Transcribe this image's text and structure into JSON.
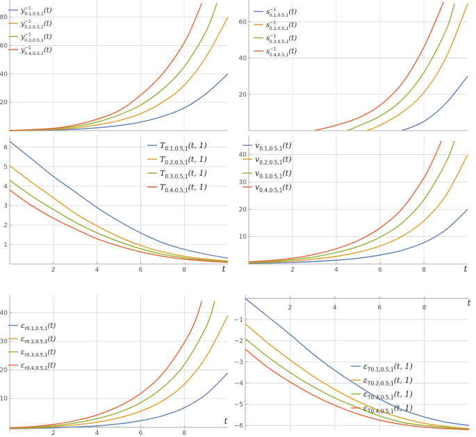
{
  "colors": [
    "#5e81b5",
    "#e19c24",
    "#8fb032",
    "#eb6235"
  ],
  "chart_data": [
    {
      "id": "p1",
      "type": "line",
      "xlim": [
        0,
        10
      ],
      "ylim": [
        0,
        92
      ],
      "xticks": [],
      "yticks": [
        20,
        40,
        60,
        80
      ],
      "xlabel": "",
      "legend_position": "top-left",
      "legend_font": 10,
      "legend": [
        {
          "sym": "y",
          "sup": "−1",
          "sub": "0.1,0.5,1",
          "arg": "(t)"
        },
        {
          "sym": "y",
          "sup": "−1",
          "sub": "0.2,0.5,1",
          "arg": "(t)"
        },
        {
          "sym": "y",
          "sup": "−1",
          "sub": "0.3,0.5,1",
          "arg": "(t)"
        },
        {
          "sym": "y",
          "sup": "−1",
          "sub": "0.4,0.5,1",
          "arg": "(t)"
        }
      ],
      "series": [
        {
          "x": [
            0,
            2,
            3,
            4,
            5,
            6,
            7,
            8,
            9,
            10
          ],
          "y": [
            0,
            0.4,
            1,
            2,
            3.5,
            6,
            10,
            16,
            26,
            40
          ]
        },
        {
          "x": [
            0,
            2,
            3,
            4,
            5,
            6,
            7,
            8,
            9,
            10
          ],
          "y": [
            0,
            0.8,
            2,
            4,
            7,
            12,
            20,
            32,
            52,
            80
          ]
        },
        {
          "x": [
            0,
            2,
            3,
            4,
            5,
            6,
            7,
            8,
            9,
            9.5
          ],
          "y": [
            0,
            1.2,
            3,
            6,
            11,
            18,
            29,
            45,
            70,
            90
          ]
        },
        {
          "x": [
            0,
            2,
            3,
            4,
            5,
            6,
            7,
            8,
            8.6,
            8.8
          ],
          "y": [
            0,
            1.6,
            4,
            8,
            14,
            25,
            40,
            62,
            82,
            90
          ]
        }
      ]
    },
    {
      "id": "p2",
      "type": "line",
      "xlim": [
        0,
        10
      ],
      "ylim": [
        0,
        72
      ],
      "xticks": [],
      "yticks": [
        20,
        40,
        60
      ],
      "xlabel": "",
      "legend_position": "top-left",
      "legend_font": 10,
      "legend": [
        {
          "sym": "s",
          "sup": "−1",
          "sub": "0.1,0.5,1",
          "arg": "(t)"
        },
        {
          "sym": "s",
          "sup": "−1",
          "sub": "0.2,0.5,1",
          "arg": "(t)"
        },
        {
          "sym": "s",
          "sup": "−1",
          "sub": "0.3,0.5,1",
          "arg": "(t)"
        },
        {
          "sym": "s",
          "sup": "−1",
          "sub": "0.4,0.5,1",
          "arg": "(t)"
        }
      ],
      "series": [
        {
          "x": [
            7,
            8,
            9,
            10
          ],
          "y": [
            0,
            5,
            15,
            30
          ]
        },
        {
          "x": [
            5.4,
            6,
            7,
            8,
            9,
            10
          ],
          "y": [
            0,
            3,
            10,
            21,
            40,
            70
          ]
        },
        {
          "x": [
            4.5,
            5,
            6,
            7,
            8,
            9,
            9.4
          ],
          "y": [
            0,
            2.5,
            8,
            17,
            32,
            55,
            70
          ]
        },
        {
          "x": [
            3,
            4,
            5,
            6,
            7,
            8,
            8.9
          ],
          "y": [
            0,
            3,
            7,
            14,
            26,
            46,
            71
          ]
        }
      ]
    },
    {
      "id": "p3",
      "type": "line",
      "xlim": [
        0,
        10
      ],
      "ylim": [
        0,
        6.6
      ],
      "xticks": [
        2,
        4,
        6,
        8
      ],
      "yticks": [
        1,
        2,
        3,
        4,
        5,
        6
      ],
      "xlabel": "t",
      "legend_position": "top-right",
      "legend_font": 11,
      "legend": [
        {
          "sym": "T",
          "sup": "",
          "sub": "0.1,0.5,1",
          "arg": "(t, 1)"
        },
        {
          "sym": "T",
          "sup": "",
          "sub": "0.2,0.5,1",
          "arg": "(t, 1)"
        },
        {
          "sym": "T",
          "sup": "",
          "sub": "0.3,0.5,1",
          "arg": "(t, 1)"
        },
        {
          "sym": "T",
          "sup": "",
          "sub": "0.4,0.5,1",
          "arg": "(t, 1)"
        }
      ],
      "series": [
        {
          "x": [
            0,
            1,
            2,
            3,
            4,
            5,
            6,
            7,
            8,
            9,
            10
          ],
          "y": [
            6.3,
            5.4,
            4.5,
            3.7,
            2.9,
            2.2,
            1.6,
            1.1,
            0.75,
            0.5,
            0.3
          ]
        },
        {
          "x": [
            0,
            1,
            2,
            3,
            4,
            5,
            6,
            7,
            8,
            9,
            10
          ],
          "y": [
            5.05,
            4.2,
            3.4,
            2.6,
            1.95,
            1.4,
            0.95,
            0.62,
            0.4,
            0.25,
            0.15
          ]
        },
        {
          "x": [
            0,
            1,
            2,
            3,
            4,
            5,
            6,
            7,
            8,
            9,
            10
          ],
          "y": [
            4.3,
            3.5,
            2.8,
            2.15,
            1.6,
            1.15,
            0.78,
            0.5,
            0.32,
            0.2,
            0.12
          ]
        },
        {
          "x": [
            0,
            1,
            2,
            3,
            4,
            5,
            6,
            7,
            8,
            9,
            10
          ],
          "y": [
            3.8,
            3.0,
            2.35,
            1.8,
            1.3,
            0.92,
            0.62,
            0.4,
            0.25,
            0.15,
            0.09
          ]
        }
      ]
    },
    {
      "id": "p4",
      "type": "line",
      "xlim": [
        0,
        10
      ],
      "ylim": [
        0,
        47
      ],
      "xticks": [
        2,
        4,
        6,
        8
      ],
      "yticks": [
        10,
        20,
        30,
        40
      ],
      "xlabel": "t",
      "legend_position": "top-left",
      "legend_font": 11,
      "legend": [
        {
          "sym": "v",
          "sup": "",
          "sub": "0.1,0.5,1",
          "arg": "(t)"
        },
        {
          "sym": "v",
          "sup": "",
          "sub": "0.2,0.5,1",
          "arg": "(t)"
        },
        {
          "sym": "v",
          "sup": "",
          "sub": "0.3,0.5,1",
          "arg": "(t)"
        },
        {
          "sym": "v",
          "sup": "",
          "sub": "0.4,0.5,1",
          "arg": "(t)"
        }
      ],
      "series": [
        {
          "x": [
            0,
            1,
            2,
            3,
            4,
            5,
            6,
            7,
            8,
            9,
            10
          ],
          "y": [
            0.2,
            0.35,
            0.6,
            0.9,
            1.4,
            2.1,
            3.3,
            5.0,
            7.8,
            12.5,
            20
          ]
        },
        {
          "x": [
            0,
            1,
            2,
            3,
            4,
            5,
            6,
            7,
            8,
            9,
            10
          ],
          "y": [
            0.4,
            0.7,
            1.1,
            1.8,
            2.8,
            4.3,
            6.6,
            10.1,
            15.8,
            25,
            40
          ]
        },
        {
          "x": [
            0,
            1,
            2,
            3,
            4,
            5,
            6,
            7,
            8,
            9,
            9.4
          ],
          "y": [
            0.6,
            1.0,
            1.6,
            2.6,
            4.2,
            6.4,
            9.8,
            15,
            23.5,
            37,
            45
          ]
        },
        {
          "x": [
            0,
            1,
            2,
            3,
            4,
            5,
            6,
            7,
            8,
            8.5,
            8.8
          ],
          "y": [
            0.8,
            1.3,
            2.1,
            3.5,
            5.6,
            8.6,
            13.2,
            20.2,
            31.5,
            39.5,
            45
          ]
        }
      ]
    },
    {
      "id": "p5",
      "type": "line",
      "xlim": [
        0,
        10
      ],
      "ylim": [
        -1.2,
        46
      ],
      "xticks": [
        2,
        4,
        6,
        8
      ],
      "yticks": [
        10,
        20,
        30,
        40
      ],
      "xlabel": "t",
      "legend_position": "left",
      "legend_font": 10,
      "legend": [
        {
          "sym": "ε",
          "sup": "",
          "sub": "r0.1,0.5,1",
          "arg": "(t)"
        },
        {
          "sym": "ε",
          "sup": "",
          "sub": "r0.2,0.5,1",
          "arg": "(t)"
        },
        {
          "sym": "ε",
          "sup": "",
          "sub": "r0.3,0.5,1",
          "arg": "(t)"
        },
        {
          "sym": "ε",
          "sup": "",
          "sub": "r0.4,0.5,1",
          "arg": "(t)"
        }
      ],
      "series": [
        {
          "x": [
            0,
            1,
            2,
            3,
            4,
            5,
            6,
            7,
            8,
            9,
            10
          ],
          "y": [
            -0.5,
            -0.4,
            -0.2,
            0.1,
            0.5,
            1.2,
            2.3,
            4.0,
            6.8,
            11.5,
            19
          ]
        },
        {
          "x": [
            0,
            1,
            2,
            3,
            4,
            5,
            6,
            7,
            8,
            9,
            10
          ],
          "y": [
            -0.4,
            -0.2,
            0.2,
            0.8,
            1.8,
            3.3,
            5.6,
            9.2,
            15,
            24.5,
            39
          ]
        },
        {
          "x": [
            0,
            1,
            2,
            3,
            4,
            5,
            6,
            7,
            8,
            9,
            9.4
          ],
          "y": [
            -0.3,
            0,
            0.5,
            1.5,
            3.0,
            5.2,
            8.6,
            13.8,
            21.8,
            35,
            44
          ]
        },
        {
          "x": [
            0,
            1,
            2,
            3,
            4,
            5,
            6,
            7,
            8,
            8.5,
            8.8
          ],
          "y": [
            -0.2,
            0.2,
            1.0,
            2.3,
            4.3,
            7.3,
            11.8,
            18.6,
            29.5,
            37,
            44
          ]
        }
      ]
    },
    {
      "id": "p6",
      "type": "line",
      "xlim": [
        0,
        10
      ],
      "ylim": [
        -6.25,
        0.15
      ],
      "xticks": [
        2,
        4,
        6,
        8
      ],
      "yticks": [
        -1,
        -2,
        -3,
        -4,
        -5,
        -6
      ],
      "xlabel": "t",
      "legend_position": "right",
      "legend_font": 11,
      "legend": [
        {
          "sym": "ε",
          "sup": "",
          "sub": "T0.1,0.5,1",
          "arg": "(t, 1)"
        },
        {
          "sym": "ε",
          "sup": "",
          "sub": "T0.2,0.5,1",
          "arg": "(t, 1)"
        },
        {
          "sym": "ε",
          "sup": "",
          "sub": "T0.3,0.5,1",
          "arg": "(t, 1)"
        },
        {
          "sym": "ε",
          "sup": "",
          "sub": "T0.4,0.5,1",
          "arg": "(t, 1)"
        }
      ],
      "series": [
        {
          "x": [
            0,
            1,
            2,
            3,
            4,
            5,
            6,
            7,
            8,
            9,
            10
          ],
          "y": [
            0,
            -0.85,
            -1.7,
            -2.6,
            -3.4,
            -4.1,
            -4.75,
            -5.25,
            -5.6,
            -5.85,
            -6.0
          ]
        },
        {
          "x": [
            0,
            1,
            2,
            3,
            4,
            5,
            6,
            7,
            8,
            9,
            10
          ],
          "y": [
            -1.2,
            -2.1,
            -2.9,
            -3.65,
            -4.3,
            -4.85,
            -5.3,
            -5.65,
            -5.9,
            -6.05,
            -6.15
          ]
        },
        {
          "x": [
            0,
            1,
            2,
            3,
            4,
            5,
            6,
            7,
            8,
            9,
            10
          ],
          "y": [
            -1.9,
            -2.75,
            -3.5,
            -4.15,
            -4.7,
            -5.15,
            -5.55,
            -5.85,
            -6.0,
            -6.1,
            -6.18
          ]
        },
        {
          "x": [
            0,
            1,
            2,
            3,
            4,
            5,
            6,
            7,
            8,
            9,
            10
          ],
          "y": [
            -2.4,
            -3.25,
            -3.95,
            -4.55,
            -5.05,
            -5.45,
            -5.75,
            -5.95,
            -6.08,
            -6.15,
            -6.2
          ]
        }
      ]
    }
  ]
}
